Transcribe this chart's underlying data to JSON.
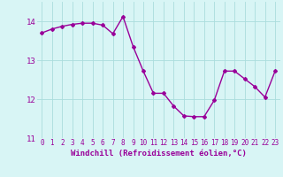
{
  "x": [
    0,
    1,
    2,
    3,
    4,
    5,
    6,
    7,
    8,
    9,
    10,
    11,
    12,
    13,
    14,
    15,
    16,
    17,
    18,
    19,
    20,
    21,
    22,
    23
  ],
  "y": [
    13.7,
    13.8,
    13.87,
    13.92,
    13.95,
    13.95,
    13.9,
    13.68,
    14.12,
    13.35,
    12.72,
    12.15,
    12.15,
    11.82,
    11.57,
    11.55,
    11.55,
    11.97,
    12.72,
    12.72,
    12.52,
    12.32,
    12.05,
    12.72
  ],
  "line_color": "#990099",
  "marker": "D",
  "marker_size": 2,
  "background_color": "#d8f5f5",
  "grid_color": "#aadddd",
  "xlabel": "Windchill (Refroidissement éolien,°C)",
  "xlabel_color": "#990099",
  "tick_color": "#990099",
  "ylim": [
    11.0,
    14.5
  ],
  "xlim": [
    -0.5,
    23.5
  ],
  "yticks": [
    11,
    12,
    13,
    14
  ],
  "xticks": [
    0,
    1,
    2,
    3,
    4,
    5,
    6,
    7,
    8,
    9,
    10,
    11,
    12,
    13,
    14,
    15,
    16,
    17,
    18,
    19,
    20,
    21,
    22,
    23
  ],
  "tick_fontsize": 5.5,
  "xlabel_fontsize": 6.5,
  "linewidth": 1.0
}
